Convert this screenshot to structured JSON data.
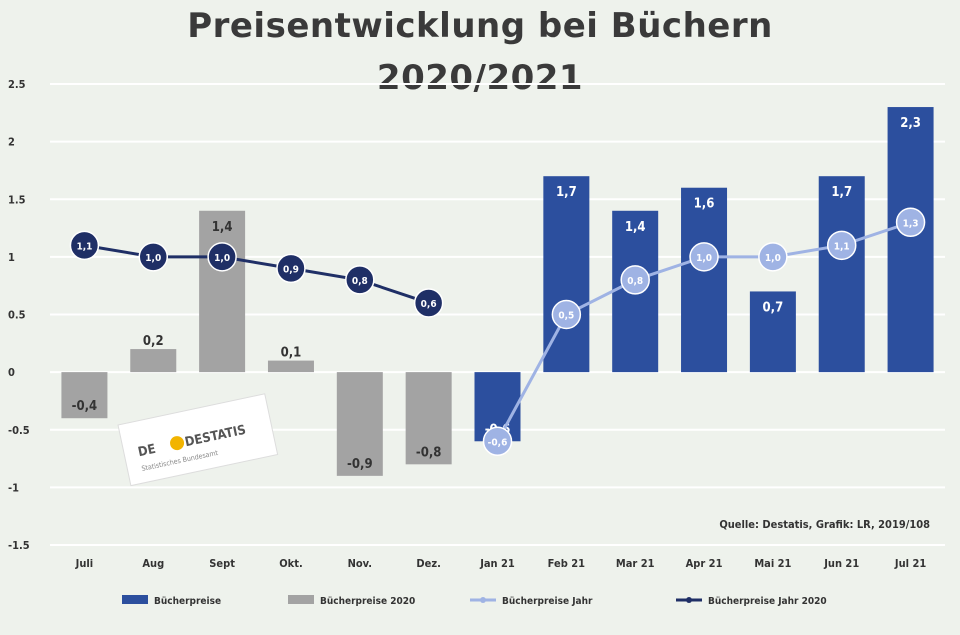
{
  "chart_data": {
    "type": "bar",
    "title": "Preisentwicklung bei Büchern",
    "subtitle": "2020/2021",
    "categories": [
      "Juli",
      "Aug",
      "Sept",
      "Okt.",
      "Nov.",
      "Dez.",
      "Jan 21",
      "Feb 21",
      "Mar 21",
      "Apr 21",
      "Mai 21",
      "Jun 21",
      "Jul 21"
    ],
    "ylim": [
      -1.5,
      2.5
    ],
    "yticks": [
      -1.5,
      -1,
      -0.5,
      0,
      0.5,
      1,
      1.5,
      2,
      2.5
    ],
    "ytick_labels": [
      "-1.5",
      "-1",
      "-0.5",
      "0",
      "0.5",
      "1",
      "1.5",
      "2",
      "2.5"
    ],
    "grid": true,
    "legend_position": "bottom",
    "series": [
      {
        "name": "Bücherpreise",
        "kind": "bar",
        "color": "#2c4f9e",
        "values": [
          null,
          null,
          null,
          null,
          null,
          null,
          -0.6,
          1.7,
          1.4,
          1.6,
          0.7,
          1.7,
          2.3
        ],
        "labels": [
          "",
          "",
          "",
          "",
          "",
          "",
          "-0,6",
          "1,7",
          "1,4",
          "1,6",
          "0,7",
          "1,7",
          "2,3"
        ]
      },
      {
        "name": "Bücherpreise 2020",
        "kind": "bar",
        "color": "#a3a3a3",
        "values": [
          -0.4,
          0.2,
          1.4,
          0.1,
          -0.9,
          -0.8,
          null,
          null,
          null,
          null,
          null,
          null,
          null
        ],
        "labels": [
          "-0,4",
          "0,2",
          "1,4",
          "0,1",
          "-0,9",
          "-0,8",
          "",
          "",
          "",
          "",
          "",
          "",
          ""
        ]
      },
      {
        "name": "Bücherpreise Jahr",
        "kind": "line",
        "color": "#9fb3e4",
        "values": [
          null,
          null,
          null,
          null,
          null,
          null,
          -0.6,
          0.5,
          0.8,
          1.0,
          1.0,
          1.1,
          1.3
        ],
        "labels": [
          "",
          "",
          "",
          "",
          "",
          "",
          "-0,6",
          "0,5",
          "0,8",
          "1,0",
          "1,0",
          "1,1",
          "1,3"
        ]
      },
      {
        "name": "Bücherpreise Jahr 2020",
        "kind": "line",
        "color": "#1f2f66",
        "values": [
          1.1,
          1.0,
          1.0,
          0.9,
          0.8,
          0.6,
          null,
          null,
          null,
          null,
          null,
          null,
          null
        ],
        "labels": [
          "1,1",
          "1,0",
          "1,0",
          "0,9",
          "0,8",
          "0,6",
          "",
          "",
          "",
          "",
          "",
          "",
          ""
        ]
      }
    ],
    "source": "Quelle: Destatis, Grafik: LR, 2019/108"
  },
  "logo": {
    "text": "DESTATIS",
    "subtext": "Statistisches Bundesamt"
  },
  "colors": {
    "background": "#eef2ec",
    "grid": "#ffffff",
    "axis_text": "#333333",
    "title": "#3a3a3a"
  }
}
